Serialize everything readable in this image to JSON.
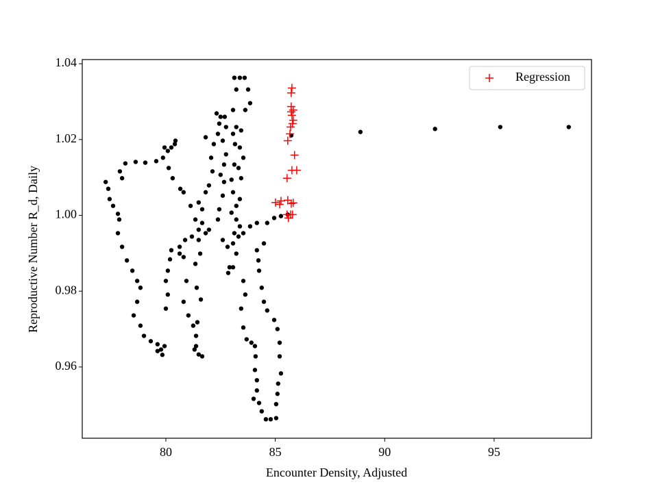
{
  "chart_data": {
    "type": "scatter",
    "xlabel": "Encounter Density, Adjusted",
    "ylabel": "Reproductive Number R_d, Daily",
    "xlim": [
      76.18,
      99.45
    ],
    "ylim": [
      0.9412,
      1.0411
    ],
    "xticks": [
      80,
      85,
      90,
      95
    ],
    "yticks": [
      0.96,
      0.98,
      {
        "value": 1,
        "label": "1.00"
      },
      1.02,
      1.04
    ],
    "legend": "upper right",
    "series": [
      {
        "color": "#000000",
        "marker": "o",
        "x": [
          77.25,
          77.37,
          77.43,
          77.59,
          77.81,
          77.87,
          77.81,
          78.0,
          78.22,
          78.47,
          78.69,
          78.84,
          78.69,
          78.53,
          78.84,
          79.0,
          79.31,
          79.62,
          79.78,
          79.84,
          79.62,
          79.94,
          80.0,
          80.09,
          80.0,
          80.09,
          80.19,
          80.25,
          80.63,
          80.63,
          80.88,
          81.19,
          81.5,
          81.66,
          81.35,
          81.13,
          80.81,
          80.66,
          80.31,
          80.13,
          79.87,
          79.56,
          79.06,
          78.62,
          78.15,
          77.9,
          78.0,
          79.94,
          80.25,
          80.41,
          80.44,
          80.09,
          80.81,
          80.94,
          80.81,
          81.03,
          81.25,
          81.38,
          81.38,
          81.5,
          81.66,
          81.31,
          81.44,
          81.6,
          81.41,
          81.35,
          81.57,
          81.5,
          81.82,
          81.97,
          81.66,
          81.5,
          81.82,
          81.97,
          82.13,
          82.07,
          81.82,
          82.19,
          82.38,
          82.44,
          82.32,
          82.5,
          82.69,
          82.75,
          82.6,
          82.75,
          82.66,
          82.5,
          82.66,
          82.6,
          82.44,
          82.38,
          82.6,
          82.82,
          82.91,
          82.85,
          83.07,
          83.13,
          83.0,
          83.22,
          83.07,
          83.0,
          83.13,
          83.32,
          83.16,
          83.07,
          83.22,
          83.07,
          83.22,
          83.13,
          83.38,
          83.6,
          83.76,
          83.85,
          83.63,
          83.44,
          83.38,
          83.54,
          83.44,
          83.38,
          83.22,
          83.38,
          83.07,
          83.22,
          83.32,
          83.54,
          83.85,
          84.16,
          84.63,
          84.95,
          85.26,
          85.57,
          83.54,
          83.63,
          83.44,
          83.54,
          83.69,
          83.91,
          84.07,
          84.1,
          84.07,
          84.16,
          84.16,
          84.01,
          84.26,
          84.38,
          84.57,
          84.79,
          85.04,
          85.04,
          85.1,
          85.13,
          85.26,
          85.2,
          85.2,
          85.1,
          84.95,
          84.63,
          84.48,
          84.38,
          84.26,
          84.23,
          84.16,
          84.48,
          85.73,
          88.89,
          92.3,
          95.28,
          98.41
        ],
        "values": [
          1.0088,
          1.007,
          1.0043,
          1.0025,
          1.0004,
          0.9989,
          0.9953,
          0.9917,
          0.9881,
          0.9854,
          0.9827,
          0.9809,
          0.9772,
          0.9736,
          0.9709,
          0.9682,
          0.9668,
          0.966,
          0.9646,
          0.9632,
          0.9642,
          0.9655,
          0.9754,
          0.9791,
          0.9827,
          0.9854,
          0.9884,
          0.9908,
          0.9899,
          0.9917,
          0.9935,
          0.9944,
          0.9962,
          0.998,
          0.9989,
          1.0025,
          1.0061,
          1.007,
          1.0098,
          1.0125,
          1.0152,
          1.0143,
          1.0139,
          1.0141,
          1.0137,
          1.0116,
          1.0098,
          1.0179,
          1.0179,
          1.0188,
          1.0197,
          1.017,
          0.989,
          0.9827,
          0.9772,
          0.9736,
          0.9709,
          0.9682,
          0.9655,
          0.9633,
          0.9628,
          0.9646,
          0.9718,
          0.9778,
          0.9809,
          0.9872,
          0.9899,
          0.9935,
          0.9953,
          0.9962,
          1.0016,
          1.0034,
          1.0061,
          1.0079,
          1.0116,
          1.0152,
          1.0206,
          1.0188,
          1.0215,
          1.0242,
          1.0269,
          1.026,
          1.026,
          1.0233,
          1.0197,
          1.0161,
          1.0134,
          1.0107,
          1.0088,
          1.0052,
          1.0016,
          0.9989,
          0.9935,
          0.9917,
          0.9863,
          0.9848,
          0.9863,
          0.9953,
          1.0007,
          1.0025,
          1.0061,
          1.0094,
          1.0134,
          1.0125,
          1.0188,
          1.0215,
          1.0233,
          1.0278,
          1.0332,
          1.0363,
          1.0363,
          1.0363,
          1.0332,
          1.0296,
          1.0278,
          1.0224,
          1.0179,
          1.0152,
          1.0098,
          1.0043,
          0.9989,
          0.9971,
          0.9926,
          0.9899,
          0.9944,
          0.9953,
          0.9971,
          0.998,
          0.998,
          0.9993,
          0.9998,
          1.0002,
          0.9827,
          0.9791,
          0.9754,
          0.9704,
          0.9673,
          0.9664,
          0.9655,
          0.9628,
          0.9592,
          0.9565,
          0.9538,
          0.9516,
          0.9505,
          0.9483,
          0.9462,
          0.9462,
          0.9465,
          0.9502,
          0.9529,
          0.9556,
          0.9583,
          0.9628,
          0.9664,
          0.97,
          0.9724,
          0.9749,
          0.9772,
          0.9809,
          0.9854,
          0.9881,
          0.9908,
          0.9926,
          1.0211,
          1.022,
          1.0228,
          1.0233,
          1.0233
        ]
      },
      {
        "name": "Regression",
        "color": "#ff0000",
        "marker": "+",
        "x": [
          85.76,
          85.73,
          85.73,
          85.82,
          85.73,
          85.76,
          85.82,
          85.79,
          85.7,
          85.67,
          85.57,
          85.88,
          85.76,
          85.98,
          85.54,
          85.01,
          85.26,
          85.2,
          85.57,
          85.73,
          85.82,
          85.54,
          85.7,
          85.79,
          85.6
        ],
        "values": [
          1.0336,
          1.0323,
          1.0287,
          1.0278,
          1.0273,
          1.0264,
          1.0251,
          1.0242,
          1.0233,
          1.0215,
          1.0197,
          1.0159,
          1.0119,
          1.0119,
          1.0098,
          1.0034,
          1.0038,
          1.0029,
          1.004,
          1.0031,
          1.0033,
          1.0002,
          1.0002,
          1.0002,
          0.9993
        ]
      }
    ]
  }
}
